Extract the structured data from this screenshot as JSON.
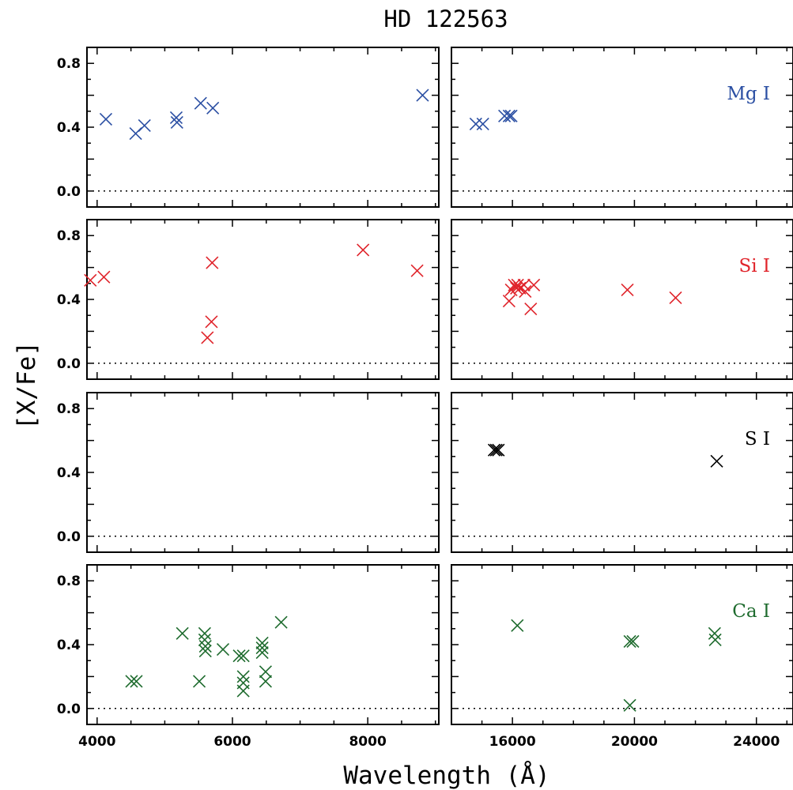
{
  "chart_data": {
    "type": "scatter",
    "title": "HD 122563",
    "xlabel": "Wavelength (Å)",
    "ylabel": "[X/Fe]",
    "marker": "x",
    "grid": false,
    "y_range": [
      -0.1,
      0.9
    ],
    "y_ticks": [
      "0.0",
      "0.4",
      "0.8"
    ],
    "left_x_range": [
      3850,
      9050
    ],
    "left_x_ticks": [
      "4000",
      "6000",
      "8000"
    ],
    "right_x_range": [
      14000,
      25200
    ],
    "right_x_ticks": [
      "16000",
      "20000",
      "24000"
    ],
    "panels": [
      {
        "element": "Mg I",
        "color": "#2b4fa3",
        "optical": [
          [
            4130,
            0.45
          ],
          [
            4570,
            0.36
          ],
          [
            4700,
            0.41
          ],
          [
            5170,
            0.46
          ],
          [
            5180,
            0.43
          ],
          [
            5530,
            0.55
          ],
          [
            5710,
            0.52
          ],
          [
            8810,
            0.6
          ]
        ],
        "infrared": [
          [
            14800,
            0.42
          ],
          [
            15030,
            0.42
          ],
          [
            15740,
            0.47
          ],
          [
            15890,
            0.47
          ],
          [
            15960,
            0.47
          ]
        ]
      },
      {
        "element": "Si I",
        "color": "#e0242b",
        "optical": [
          [
            3900,
            0.52
          ],
          [
            4100,
            0.54
          ],
          [
            5630,
            0.16
          ],
          [
            5690,
            0.26
          ],
          [
            5700,
            0.63
          ],
          [
            7930,
            0.71
          ],
          [
            8730,
            0.58
          ]
        ],
        "infrared": [
          [
            15890,
            0.39
          ],
          [
            15960,
            0.46
          ],
          [
            16060,
            0.49
          ],
          [
            16130,
            0.47
          ],
          [
            16170,
            0.49
          ],
          [
            16240,
            0.47
          ],
          [
            16380,
            0.49
          ],
          [
            16420,
            0.45
          ],
          [
            16600,
            0.34
          ],
          [
            16700,
            0.49
          ],
          [
            19770,
            0.46
          ],
          [
            21350,
            0.41
          ]
        ]
      },
      {
        "element": "S I",
        "color": "#000000",
        "optical": [],
        "infrared": [
          [
            15400,
            0.54
          ],
          [
            15470,
            0.54
          ],
          [
            15540,
            0.54
          ],
          [
            22700,
            0.47
          ]
        ]
      },
      {
        "element": "Ca I",
        "color": "#1e6b2e",
        "optical": [
          [
            4510,
            0.17
          ],
          [
            4580,
            0.17
          ],
          [
            5260,
            0.47
          ],
          [
            5510,
            0.17
          ],
          [
            5590,
            0.47
          ],
          [
            5590,
            0.43
          ],
          [
            5600,
            0.39
          ],
          [
            5600,
            0.36
          ],
          [
            5860,
            0.37
          ],
          [
            6100,
            0.33
          ],
          [
            6160,
            0.33
          ],
          [
            6160,
            0.2
          ],
          [
            6160,
            0.16
          ],
          [
            6160,
            0.11
          ],
          [
            6440,
            0.41
          ],
          [
            6440,
            0.38
          ],
          [
            6440,
            0.35
          ],
          [
            6490,
            0.23
          ],
          [
            6490,
            0.17
          ],
          [
            6720,
            0.54
          ]
        ],
        "infrared": [
          [
            16160,
            0.52
          ],
          [
            19850,
            0.42
          ],
          [
            19950,
            0.42
          ],
          [
            19850,
            0.02
          ],
          [
            22630,
            0.47
          ],
          [
            22650,
            0.43
          ]
        ]
      }
    ]
  }
}
